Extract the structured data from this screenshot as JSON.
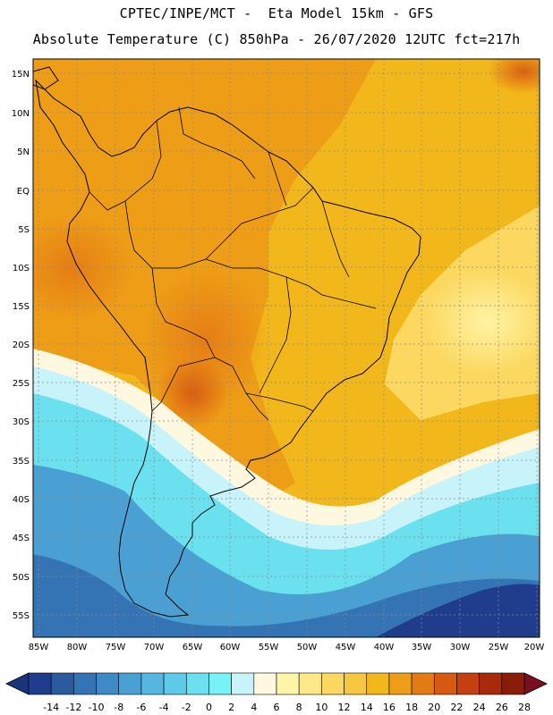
{
  "title_line1": "CPTEC/INPE/MCT -  Eta Model 15km - GFS",
  "title_line2": "Absolute Temperature (C) 850hPa - 26/07/2020 12UTC fct=217h",
  "lat_labels": [
    "15N",
    "10N",
    "5N",
    "EQ",
    "5S",
    "10S",
    "15S",
    "20S",
    "25S",
    "30S",
    "35S",
    "40S",
    "45S",
    "50S",
    "55S"
  ],
  "lon_labels": [
    "85W",
    "80W",
    "75W",
    "70W",
    "65W",
    "60W",
    "55W",
    "50W",
    "45W",
    "40W",
    "35W",
    "30W",
    "25W",
    "20W"
  ],
  "colorbar_labels": [
    "-14",
    "-12",
    "-10",
    "-8",
    "-6",
    "-4",
    "-2",
    "0",
    "2",
    "4",
    "6",
    "8",
    "10",
    "12",
    "14",
    "16",
    "18",
    "20",
    "22",
    "24",
    "26",
    "28"
  ],
  "colorbar_colors": [
    "#1f3d8c",
    "#2a5aa0",
    "#3474b4",
    "#3f8ac4",
    "#4aa0d2",
    "#55b6e0",
    "#5fcbe8",
    "#6be0ef",
    "#77f2f6",
    "#c9f3fb",
    "#fff8e0",
    "#fff5a8",
    "#ffe88a",
    "#fcd860",
    "#f6c840",
    "#f2b71a",
    "#ee9d17",
    "#e47a14",
    "#d85a10",
    "#c44010",
    "#a82a0c",
    "#8a1c0a"
  ],
  "colorbar_end_low": "#1a3478",
  "colorbar_end_high": "#7a0f20"
}
